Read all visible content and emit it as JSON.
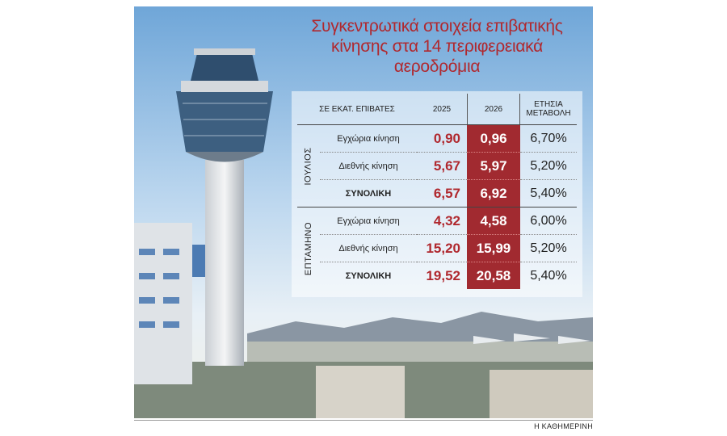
{
  "title": "Συγκεντρωτικά στοιχεία επιβατικής κίνησης στα 14 περιφερειακά αεροδρόμια",
  "table": {
    "header": [
      "ΣΕ ΕΚΑΤ. ΕΠΙΒΑΤΕΣ",
      "2025",
      "2026",
      "ΕΤΗΣΙΑ ΜΕΤΑΒΟΛΗ"
    ],
    "groups": [
      {
        "label": "ΙΟΥΛΙΟΣ",
        "rows": [
          [
            "Εγχώρια κίνηση",
            "0,90",
            "0,96",
            "6,70%"
          ],
          [
            "Διεθνής κίνηση",
            "5,67",
            "5,97",
            "5,20%"
          ],
          [
            "ΣΥΝΟΛΙΚΗ",
            "6,57",
            "6,92",
            "5,40%"
          ]
        ]
      },
      {
        "label": "ΕΠΤΑΜΗΝΟ",
        "rows": [
          [
            "Εγχώρια κίνηση",
            "4,32",
            "4,58",
            "6,00%"
          ],
          [
            "Διεθνής κίνηση",
            "15,20",
            "15,99",
            "5,20%"
          ],
          [
            "ΣΥΝΟΛΙΚΗ",
            "19,52",
            "20,58",
            "5,40%"
          ]
        ]
      }
    ]
  },
  "credit": "Η ΚΑΘΗΜΕΡΙΝΗ"
}
